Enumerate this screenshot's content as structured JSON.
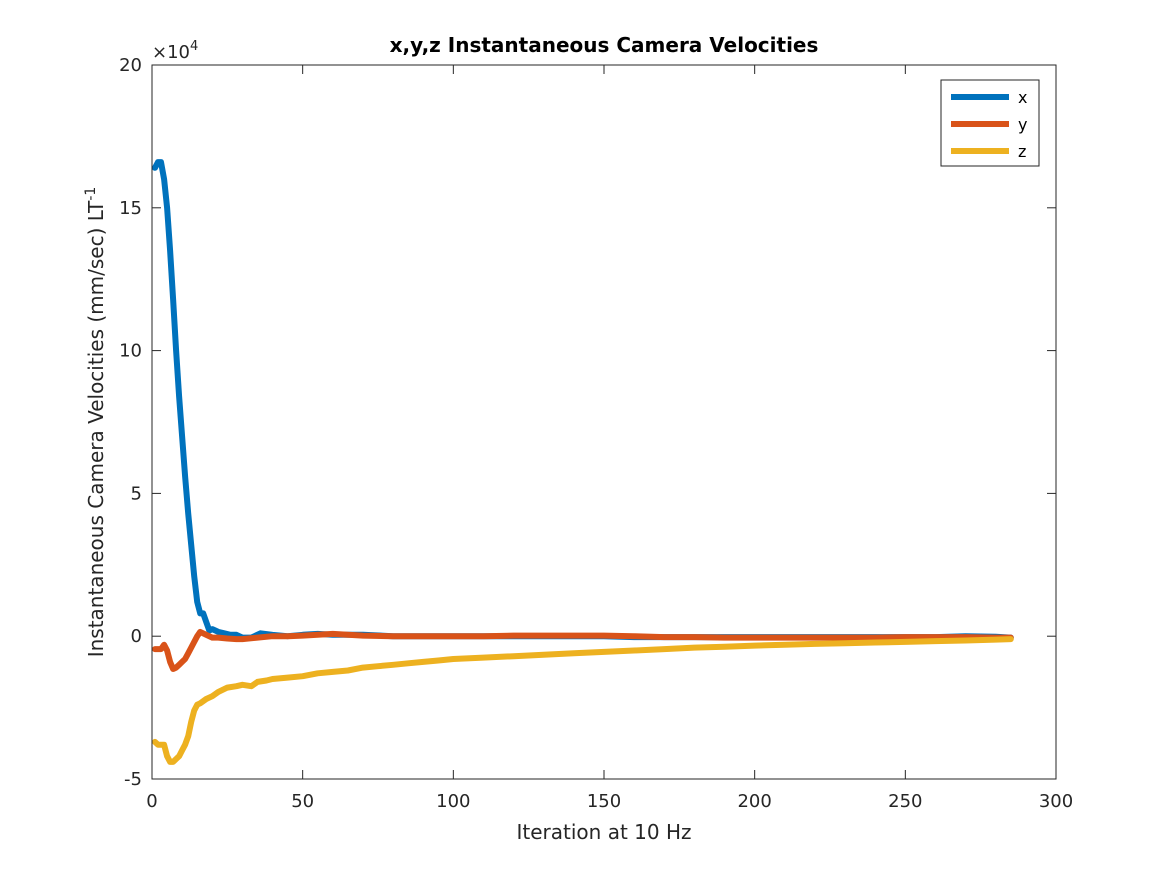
{
  "chart_data": {
    "type": "line",
    "title": "x,y,z Instantaneous Camera Velocities",
    "xlabel": "Iteration at 10 Hz",
    "ylabel": "Instantaneous Camera Velocities (mm/sec) LT",
    "ylabel_superscript": "-1",
    "y_exponent_base": "×10",
    "y_exponent_power": "4",
    "xlim": [
      0,
      300
    ],
    "ylim": [
      -5,
      20
    ],
    "y_scale_factor": 10000,
    "xticks": [
      0,
      50,
      100,
      150,
      200,
      250,
      300
    ],
    "yticks": [
      -5,
      0,
      5,
      10,
      15,
      20
    ],
    "xtick_labels": [
      "0",
      "50",
      "100",
      "150",
      "200",
      "250",
      "300"
    ],
    "ytick_labels": [
      "-5",
      "0",
      "5",
      "10",
      "15",
      "20"
    ],
    "legend_position": "top-right",
    "grid": false,
    "series": [
      {
        "name": "x",
        "color": "#0072BD",
        "points": [
          [
            1,
            16.4
          ],
          [
            2,
            16.6
          ],
          [
            3,
            16.6
          ],
          [
            4,
            16.0
          ],
          [
            5,
            15.0
          ],
          [
            6,
            13.5
          ],
          [
            7,
            11.8
          ],
          [
            8,
            10.0
          ],
          [
            9,
            8.4
          ],
          [
            10,
            7.0
          ],
          [
            11,
            5.6
          ],
          [
            12,
            4.3
          ],
          [
            13,
            3.2
          ],
          [
            14,
            2.1
          ],
          [
            15,
            1.2
          ],
          [
            16,
            0.8
          ],
          [
            17,
            0.8
          ],
          [
            18,
            0.5
          ],
          [
            19,
            0.2
          ],
          [
            20,
            0.25
          ],
          [
            22,
            0.15
          ],
          [
            24,
            0.1
          ],
          [
            26,
            0.05
          ],
          [
            28,
            0.05
          ],
          [
            30,
            -0.05
          ],
          [
            33,
            -0.05
          ],
          [
            36,
            0.1
          ],
          [
            40,
            0.05
          ],
          [
            45,
            0.0
          ],
          [
            50,
            0.05
          ],
          [
            55,
            0.08
          ],
          [
            60,
            0.05
          ],
          [
            70,
            0.05
          ],
          [
            80,
            0.0
          ],
          [
            90,
            0.0
          ],
          [
            100,
            0.0
          ],
          [
            110,
            0.0
          ],
          [
            120,
            0.0
          ],
          [
            130,
            0.0
          ],
          [
            140,
            0.0
          ],
          [
            150,
            0.0
          ],
          [
            160,
            -0.03
          ],
          [
            170,
            -0.03
          ],
          [
            180,
            -0.03
          ],
          [
            190,
            -0.03
          ],
          [
            200,
            -0.03
          ],
          [
            210,
            -0.03
          ],
          [
            220,
            -0.03
          ],
          [
            230,
            -0.03
          ],
          [
            240,
            -0.03
          ],
          [
            250,
            -0.03
          ],
          [
            260,
            -0.03
          ],
          [
            270,
            0.0
          ],
          [
            280,
            -0.02
          ],
          [
            285,
            -0.05
          ]
        ]
      },
      {
        "name": "y",
        "color": "#D95319",
        "points": [
          [
            1,
            -0.45
          ],
          [
            2,
            -0.45
          ],
          [
            3,
            -0.45
          ],
          [
            4,
            -0.3
          ],
          [
            5,
            -0.5
          ],
          [
            6,
            -0.9
          ],
          [
            7,
            -1.15
          ],
          [
            8,
            -1.1
          ],
          [
            9,
            -1.0
          ],
          [
            10,
            -0.9
          ],
          [
            11,
            -0.8
          ],
          [
            12,
            -0.6
          ],
          [
            13,
            -0.4
          ],
          [
            14,
            -0.2
          ],
          [
            15,
            0.0
          ],
          [
            16,
            0.15
          ],
          [
            18,
            0.05
          ],
          [
            20,
            -0.05
          ],
          [
            22,
            -0.05
          ],
          [
            25,
            -0.08
          ],
          [
            28,
            -0.1
          ],
          [
            30,
            -0.1
          ],
          [
            35,
            -0.05
          ],
          [
            40,
            0.0
          ],
          [
            45,
            0.0
          ],
          [
            50,
            0.02
          ],
          [
            55,
            0.05
          ],
          [
            60,
            0.08
          ],
          [
            65,
            0.05
          ],
          [
            70,
            0.02
          ],
          [
            80,
            0.0
          ],
          [
            90,
            0.0
          ],
          [
            100,
            0.0
          ],
          [
            110,
            0.0
          ],
          [
            120,
            0.02
          ],
          [
            130,
            0.02
          ],
          [
            140,
            0.02
          ],
          [
            150,
            0.02
          ],
          [
            160,
            0.0
          ],
          [
            170,
            -0.03
          ],
          [
            180,
            -0.03
          ],
          [
            190,
            -0.05
          ],
          [
            200,
            -0.05
          ],
          [
            210,
            -0.05
          ],
          [
            220,
            -0.05
          ],
          [
            230,
            -0.05
          ],
          [
            240,
            -0.05
          ],
          [
            250,
            -0.03
          ],
          [
            260,
            -0.03
          ],
          [
            270,
            -0.03
          ],
          [
            280,
            -0.05
          ],
          [
            285,
            -0.05
          ]
        ]
      },
      {
        "name": "z",
        "color": "#EDB120",
        "points": [
          [
            1,
            -3.7
          ],
          [
            2,
            -3.8
          ],
          [
            3,
            -3.8
          ],
          [
            4,
            -3.8
          ],
          [
            5,
            -4.2
          ],
          [
            6,
            -4.4
          ],
          [
            7,
            -4.4
          ],
          [
            8,
            -4.3
          ],
          [
            9,
            -4.2
          ],
          [
            10,
            -4.0
          ],
          [
            11,
            -3.8
          ],
          [
            12,
            -3.5
          ],
          [
            13,
            -3.0
          ],
          [
            14,
            -2.6
          ],
          [
            15,
            -2.4
          ],
          [
            16,
            -2.35
          ],
          [
            18,
            -2.2
          ],
          [
            20,
            -2.1
          ],
          [
            22,
            -1.95
          ],
          [
            25,
            -1.8
          ],
          [
            28,
            -1.75
          ],
          [
            30,
            -1.7
          ],
          [
            33,
            -1.75
          ],
          [
            35,
            -1.6
          ],
          [
            38,
            -1.55
          ],
          [
            40,
            -1.5
          ],
          [
            45,
            -1.45
          ],
          [
            50,
            -1.4
          ],
          [
            55,
            -1.3
          ],
          [
            60,
            -1.25
          ],
          [
            65,
            -1.2
          ],
          [
            70,
            -1.1
          ],
          [
            75,
            -1.05
          ],
          [
            80,
            -1.0
          ],
          [
            85,
            -0.95
          ],
          [
            90,
            -0.9
          ],
          [
            95,
            -0.85
          ],
          [
            100,
            -0.8
          ],
          [
            110,
            -0.75
          ],
          [
            120,
            -0.7
          ],
          [
            130,
            -0.65
          ],
          [
            140,
            -0.6
          ],
          [
            150,
            -0.55
          ],
          [
            160,
            -0.5
          ],
          [
            170,
            -0.45
          ],
          [
            180,
            -0.4
          ],
          [
            190,
            -0.37
          ],
          [
            200,
            -0.33
          ],
          [
            210,
            -0.3
          ],
          [
            220,
            -0.27
          ],
          [
            230,
            -0.25
          ],
          [
            240,
            -0.22
          ],
          [
            250,
            -0.2
          ],
          [
            260,
            -0.17
          ],
          [
            270,
            -0.15
          ],
          [
            280,
            -0.12
          ],
          [
            285,
            -0.1
          ]
        ]
      }
    ]
  }
}
